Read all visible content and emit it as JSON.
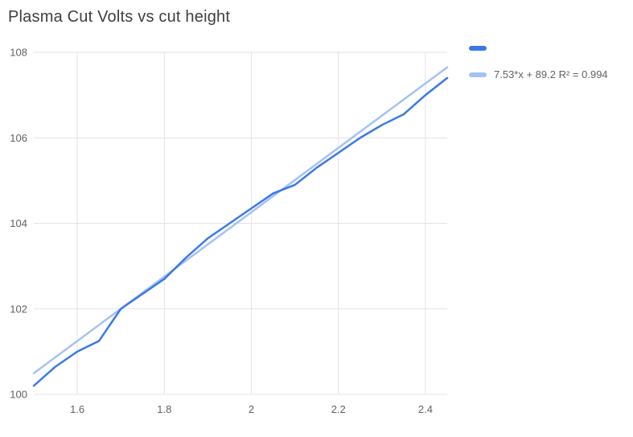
{
  "title": "Plasma Cut Volts vs cut height",
  "colors": {
    "series": "#3b78e7",
    "trendline": "#a4c2f4",
    "gridline": "#e3e3e3",
    "tick_text": "#616161",
    "title_text": "#3c4043"
  },
  "legend": {
    "items": [
      {
        "label": "",
        "color": "#3b78e7"
      },
      {
        "label": "7.53*x + 89.2 R² = 0.994",
        "color": "#a4c2f4"
      }
    ]
  },
  "chart_data": {
    "type": "line",
    "title": "Plasma Cut Volts vs cut height",
    "xlabel": "",
    "ylabel": "",
    "xlim": [
      1.5,
      2.45
    ],
    "ylim": [
      100,
      108
    ],
    "x_ticks": [
      "1.6",
      "1.8",
      "2",
      "2.2",
      "2.4"
    ],
    "y_ticks": [
      "100",
      "102",
      "104",
      "106",
      "108"
    ],
    "grid": true,
    "legend_position": "top-right",
    "x": [
      1.5,
      1.55,
      1.6,
      1.65,
      1.7,
      1.75,
      1.8,
      1.85,
      1.9,
      1.95,
      2.0,
      2.05,
      2.1,
      2.15,
      2.2,
      2.25,
      2.3,
      2.35,
      2.4,
      2.45
    ],
    "series": [
      {
        "name": "",
        "values": [
          100.2,
          100.65,
          101.0,
          101.25,
          102.0,
          102.35,
          102.7,
          103.2,
          103.65,
          104.0,
          104.35,
          104.7,
          104.9,
          105.3,
          105.65,
          106.0,
          106.3,
          106.55,
          107.0,
          107.4
        ]
      },
      {
        "name": "trendline",
        "equation": "7.53*x + 89.2",
        "r_squared": 0.994,
        "slope": 7.53,
        "intercept": 89.2
      }
    ]
  }
}
